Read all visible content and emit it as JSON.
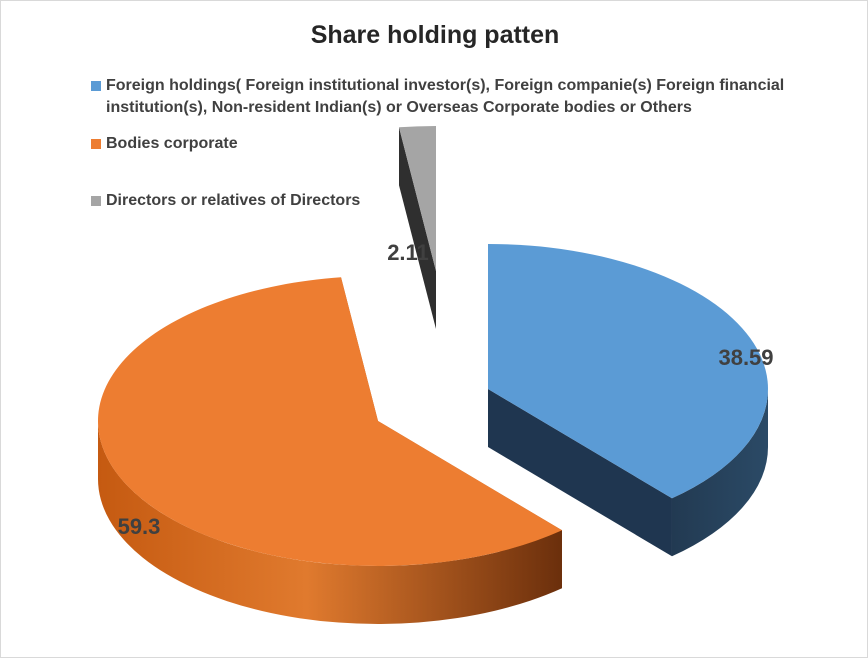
{
  "chart_data": {
    "type": "pie",
    "title": "Share holding patten",
    "legend_position": "top",
    "labels": [
      "Foreign holdings( Foreign institutional investor(s), Foreign companie(s) Foreign financial institution(s), Non-resident Indian(s) or Overseas Corporate bodies or Others",
      "Bodies corporate",
      "Directors or relatives of Directors"
    ],
    "values": [
      38.59,
      59.3,
      2.11
    ],
    "data_labels": [
      "38.59",
      "59.3",
      "2.11"
    ],
    "colors": [
      "#5b9bd5",
      "#ed7d31",
      "#a5a5a5"
    ],
    "style": "3d-exploded"
  }
}
